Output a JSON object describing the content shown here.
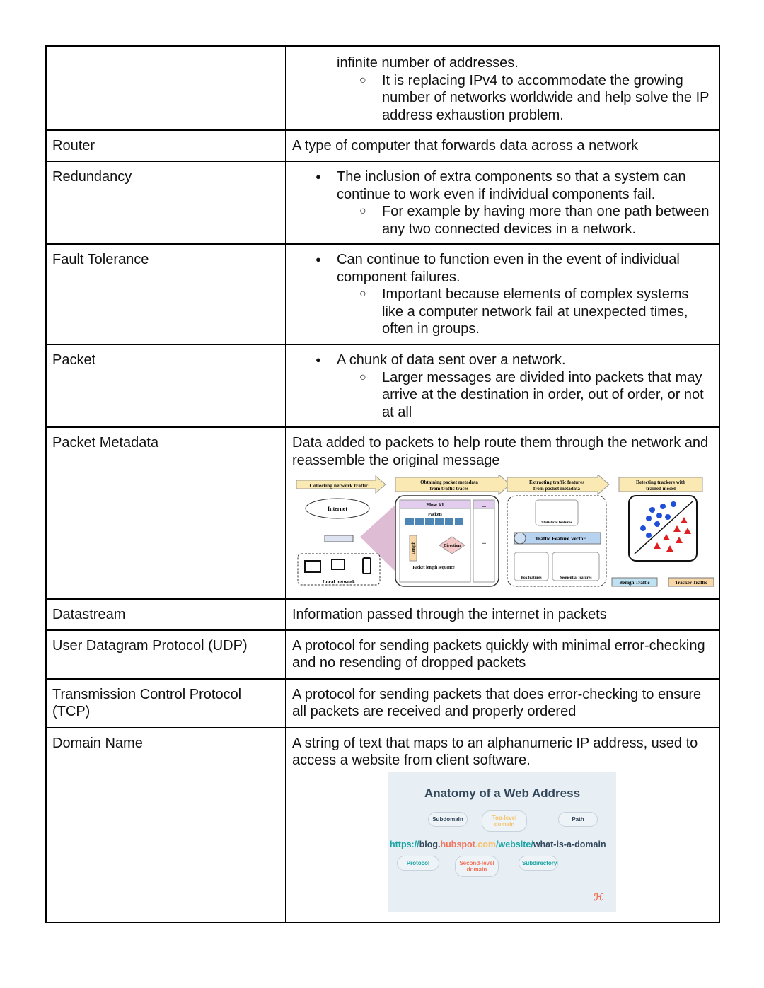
{
  "rows": [
    {
      "term": "",
      "cont": "infinite number of addresses.",
      "sub": [
        "It is replacing IPv4 to accommodate the growing number of networks worldwide and help solve the IP address exhaustion problem."
      ]
    },
    {
      "term": "Router",
      "text": "A type of computer that forwards data across a network"
    },
    {
      "term": "Redundancy",
      "bullet": "The inclusion of extra components so that a system can continue to work even if individual components fail.",
      "sub": [
        "For example by having more than one path between any two connected devices in a network."
      ]
    },
    {
      "term": "Fault Tolerance",
      "bullet": "Can continue to function even in the event of individual component failures.",
      "sub": [
        "Important because elements of complex systems like a computer network fail at unexpected times, often in groups."
      ]
    },
    {
      "term": "Packet",
      "bullet": "A chunk of data sent over a network.",
      "sub": [
        "Larger messages are divided into packets that may arrive at the destination in order, out of order, or not at all"
      ]
    },
    {
      "term": "Packet Metadata",
      "text": "Data added to packets to help route them through the network and reassemble the original message"
    },
    {
      "term": "Datastream",
      "text": "Information passed through the internet in packets"
    },
    {
      "term": "User Datagram Protocol (UDP)",
      "text": "A protocol for sending packets quickly with minimal error-checking and no resending of dropped packets"
    },
    {
      "term": "Transmission Control Protocol (TCP)",
      "text": "A protocol for sending packets that does error-checking to ensure all packets are received and properly ordered"
    },
    {
      "term": "Domain Name",
      "text": "A string of text that maps to an alphanumeric IP address, used to access a website from client software."
    }
  ],
  "pipeline": {
    "stages": [
      "Collecting network traffic",
      "Obtaining packet metadata from traffic traces",
      "Extracting traffic features from packet metadata",
      "Detecting trackers with trained model"
    ],
    "internet": "Internet",
    "local": "Local network",
    "flow": "Flow #1",
    "packets": "Packets",
    "length": "Length",
    "direction": "Direction",
    "uplink": "Uplink",
    "downlink": "Downlink",
    "seq": "Packet length sequence",
    "ellipsis": "...",
    "stat": "Statistical features",
    "vector": "Traffic Feature Vector",
    "box": "Box features",
    "sequential": "Sequential features",
    "benign": "Benign Traffic",
    "tracker": "Tracker Traffic"
  },
  "web": {
    "title": "Anatomy of a Web Address",
    "url": {
      "protocol": "https://",
      "sub": "blog.",
      "sld": "hubspot",
      "tld": ".com",
      "dir": "/website/",
      "path": "what-is-a-domain"
    },
    "labels": {
      "subdomain": "Subdomain",
      "tld": "Top-level domain",
      "path": "Path",
      "protocol": "Protocol",
      "sld": "Second-level domain",
      "subdirectory": "Subdirectory"
    },
    "colors": {
      "teal": "#1aa5a5",
      "dark": "#33475b",
      "red": "#f0735a",
      "orange": "#f5c26b"
    }
  }
}
